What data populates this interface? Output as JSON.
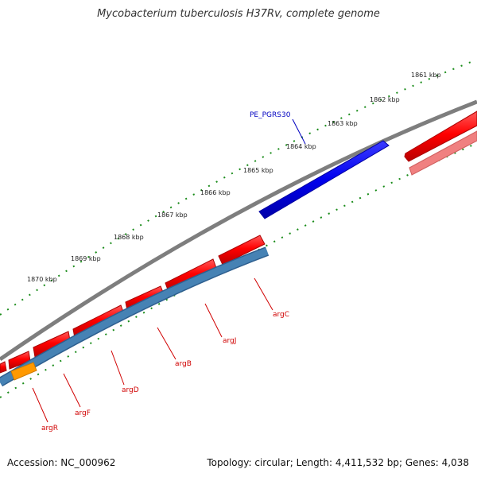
{
  "title": "Mycobacterium tuberculosis H37Rv, complete genome",
  "footer": {
    "accession": "Accession: NC_000962",
    "summary": "Topology: circular; Length: 4,411,532 bp; Genes: 4,038"
  },
  "ruler_labels": [
    "1861 kbp",
    "1862 kbp",
    "1863 kbp",
    "1864 kbp",
    "1865 kbp",
    "1866 kbp",
    "1867 kbp",
    "1868 kbp",
    "1869 kbp",
    "1870 kbp"
  ],
  "highlighted_gene": "PE_PGRS30",
  "gene_labels": [
    "argC",
    "argJ",
    "argB",
    "argD",
    "argF",
    "argR"
  ],
  "colors": {
    "forward_gene": "#ff0000",
    "reverse_gene": "#4682b4",
    "highlight_gene": "#0000ee",
    "pale_gene": "#f08080",
    "orange_gene": "#ff9900",
    "backbone": "#808080",
    "tick": "#1a8c1a",
    "label_red": "#d00000",
    "label_blue": "#0000c0"
  }
}
